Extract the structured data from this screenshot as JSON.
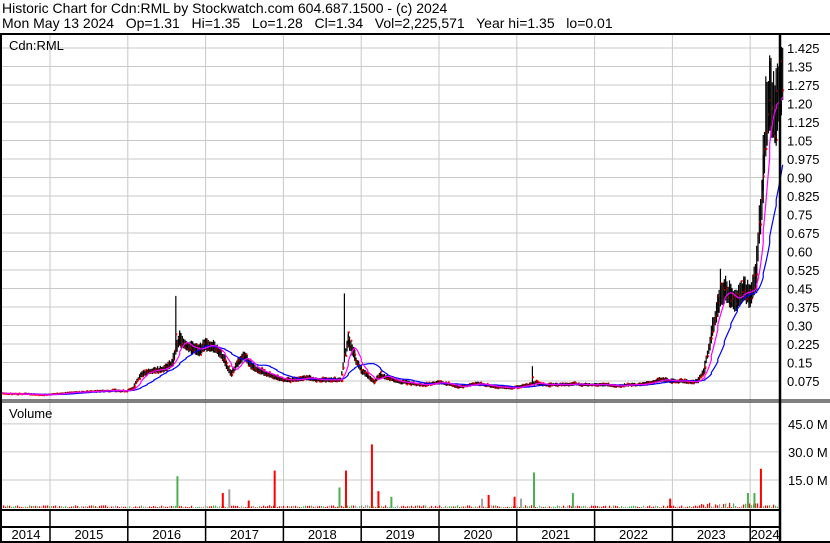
{
  "header": {
    "title": "Historic Chart for Cdn:RML by Stockwatch.com 604.687.1500 - (c) 2024",
    "quote": "Mon May 13 2024   Op=1.31   Hi=1.35   Lo=1.28   Cl=1.34   Vol=2,225,571   Year hi=1.35   lo=0.01"
  },
  "chart_data": {
    "type": "bar",
    "symbol_label": "Cdn:RML",
    "volume_label": "Volume",
    "price_axis": {
      "ticks": [
        "0.075",
        "0.15",
        "0.225",
        "0.30",
        "0.375",
        "0.45",
        "0.525",
        "0.60",
        "0.675",
        "0.75",
        "0.825",
        "0.90",
        "0.975",
        "1.05",
        "1.125",
        "1.20",
        "1.275",
        "1.35",
        "1.425"
      ],
      "range": [
        0,
        1.45
      ]
    },
    "volume_axis": {
      "ticks": [
        "15.0 M",
        "30.0 M",
        "45.0 M"
      ],
      "range_millions": [
        0,
        57
      ]
    },
    "years": [
      "2014",
      "2015",
      "2016",
      "2017",
      "2018",
      "2019",
      "2020",
      "2021",
      "2022",
      "2023",
      "2024"
    ],
    "monthly_close_by_year": {
      "2014": [
        0.025,
        0.025,
        0.023,
        0.022,
        0.022,
        0.022,
        0.02,
        0.018,
        0.02
      ],
      "2015": [
        0.022,
        0.025,
        0.028,
        0.03,
        0.03,
        0.032,
        0.033,
        0.035,
        0.035,
        0.038,
        0.035,
        0.035
      ],
      "2016": [
        0.05,
        0.1,
        0.11,
        0.12,
        0.12,
        0.13,
        0.15,
        0.25,
        0.22,
        0.21,
        0.2,
        0.22
      ],
      "2017": [
        0.22,
        0.2,
        0.16,
        0.1,
        0.15,
        0.18,
        0.14,
        0.12,
        0.11,
        0.1,
        0.09,
        0.08
      ],
      "2018": [
        0.08,
        0.08,
        0.085,
        0.09,
        0.08,
        0.08,
        0.08,
        0.08,
        0.08,
        0.25,
        0.18,
        0.12
      ],
      "2019": [
        0.1,
        0.07,
        0.1,
        0.09,
        0.08,
        0.07,
        0.07,
        0.065,
        0.06,
        0.06,
        0.065,
        0.07
      ],
      "2020": [
        0.065,
        0.06,
        0.05,
        0.055,
        0.06,
        0.065,
        0.06,
        0.055,
        0.05,
        0.05,
        0.045,
        0.05
      ],
      "2021": [
        0.055,
        0.06,
        0.07,
        0.06,
        0.06,
        0.06,
        0.06,
        0.06,
        0.065,
        0.06,
        0.06,
        0.06
      ],
      "2022": [
        0.06,
        0.06,
        0.055,
        0.055,
        0.06,
        0.06,
        0.06,
        0.065,
        0.07,
        0.08,
        0.08,
        0.075
      ],
      "2023": [
        0.075,
        0.075,
        0.07,
        0.075,
        0.12,
        0.25,
        0.38,
        0.45,
        0.42,
        0.4,
        0.45,
        0.42
      ],
      "2024": [
        0.5,
        0.9,
        1.25,
        1.15,
        1.34
      ]
    },
    "price_spikes": [
      {
        "month": "2016-08",
        "high": 0.42
      },
      {
        "month": "2018-10",
        "high": 0.43
      },
      {
        "month": "2021-03",
        "high": 0.135
      },
      {
        "month": "2023-08",
        "high": 0.53
      },
      {
        "month": "2024-03",
        "high": 1.31
      },
      {
        "month": "2024-05",
        "high": 1.35
      }
    ],
    "volume_spikes_millions": [
      {
        "month": "2016-08",
        "value": 17,
        "color": "#4caf50"
      },
      {
        "month": "2017-03",
        "value": 8,
        "color": "#ff0000"
      },
      {
        "month": "2017-04",
        "value": 10,
        "color": "#a0a0a0"
      },
      {
        "month": "2017-07",
        "value": 4,
        "color": "#ff0000"
      },
      {
        "month": "2017-11",
        "value": 20,
        "color": "#ff0000"
      },
      {
        "month": "2018-10",
        "value": 20,
        "color": "#ff0000"
      },
      {
        "month": "2018-09",
        "value": 11,
        "color": "#4caf50"
      },
      {
        "month": "2019-02",
        "value": 34,
        "color": "#ff0000"
      },
      {
        "month": "2019-03",
        "value": 9,
        "color": "#ff0000"
      },
      {
        "month": "2019-05",
        "value": 6,
        "color": "#4caf50"
      },
      {
        "month": "2020-07",
        "value": 5,
        "color": "#a0a0a0"
      },
      {
        "month": "2020-08",
        "value": 7,
        "color": "#ff0000"
      },
      {
        "month": "2020-12",
        "value": 6,
        "color": "#ff0000"
      },
      {
        "month": "2021-01",
        "value": 5,
        "color": "#a0a0a0"
      },
      {
        "month": "2021-03",
        "value": 19,
        "color": "#4caf50"
      },
      {
        "month": "2021-09",
        "value": 8,
        "color": "#4caf50"
      },
      {
        "month": "2022-12",
        "value": 5,
        "color": "#ff0000"
      },
      {
        "month": "2023-12",
        "value": 8,
        "color": "#4caf50"
      },
      {
        "month": "2024-01",
        "value": 8,
        "color": "#4caf50"
      },
      {
        "month": "2024-02",
        "value": 21,
        "color": "#ff0000"
      }
    ],
    "colors": {
      "bars": "#000000",
      "close_tick": "#ff0000",
      "ma_short": "#ff00ff",
      "ma_long": "#0000ff",
      "grid": "#c8c8c8"
    },
    "grid": true
  }
}
